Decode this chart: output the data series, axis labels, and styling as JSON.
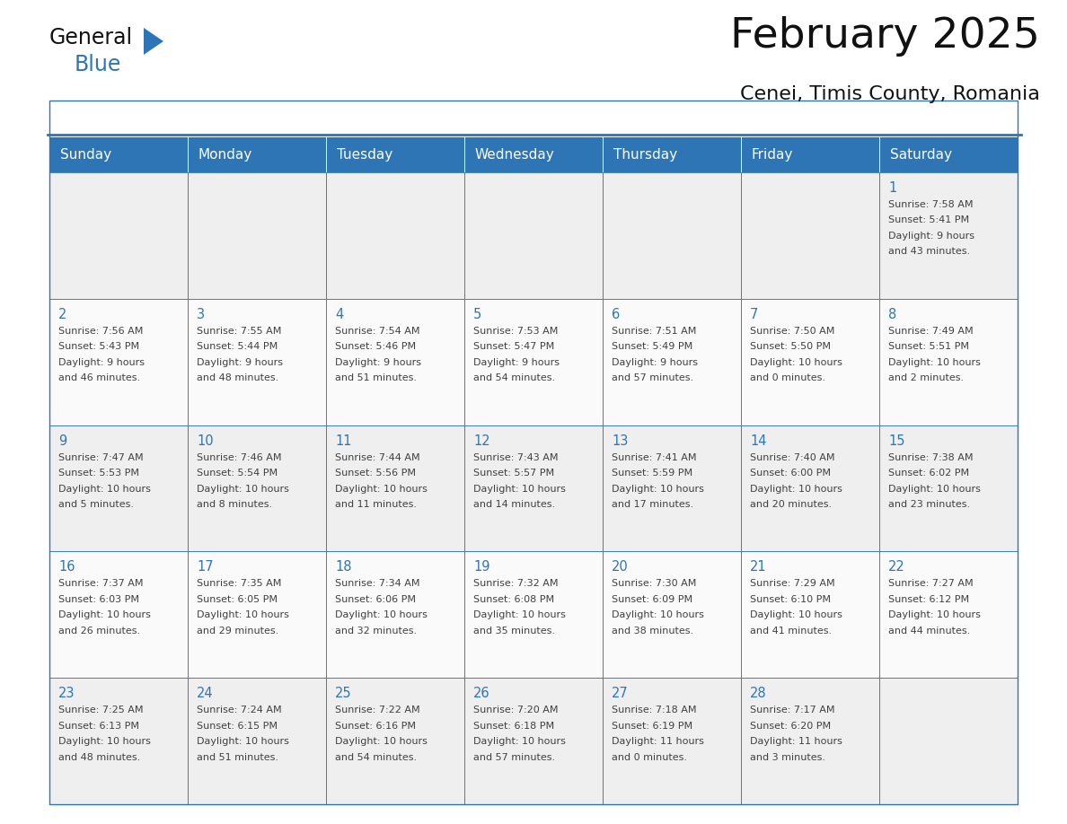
{
  "title": "February 2025",
  "subtitle": "Cenei, Timis County, Romania",
  "header_bg": "#2E75B6",
  "header_text_color": "#FFFFFF",
  "cell_bg": "#EFEFEF",
  "cell_border_color": "#2E75B6",
  "day_number_color": "#2E75B6",
  "cell_text_color": "#404040",
  "title_color": "#1a1a1a",
  "subtitle_color": "#1a1a1a",
  "days_of_week": [
    "Sunday",
    "Monday",
    "Tuesday",
    "Wednesday",
    "Thursday",
    "Friday",
    "Saturday"
  ],
  "weeks": [
    [
      {
        "day": "",
        "info": ""
      },
      {
        "day": "",
        "info": ""
      },
      {
        "day": "",
        "info": ""
      },
      {
        "day": "",
        "info": ""
      },
      {
        "day": "",
        "info": ""
      },
      {
        "day": "",
        "info": ""
      },
      {
        "day": "1",
        "info": "Sunrise: 7:58 AM\nSunset: 5:41 PM\nDaylight: 9 hours\nand 43 minutes."
      }
    ],
    [
      {
        "day": "2",
        "info": "Sunrise: 7:56 AM\nSunset: 5:43 PM\nDaylight: 9 hours\nand 46 minutes."
      },
      {
        "day": "3",
        "info": "Sunrise: 7:55 AM\nSunset: 5:44 PM\nDaylight: 9 hours\nand 48 minutes."
      },
      {
        "day": "4",
        "info": "Sunrise: 7:54 AM\nSunset: 5:46 PM\nDaylight: 9 hours\nand 51 minutes."
      },
      {
        "day": "5",
        "info": "Sunrise: 7:53 AM\nSunset: 5:47 PM\nDaylight: 9 hours\nand 54 minutes."
      },
      {
        "day": "6",
        "info": "Sunrise: 7:51 AM\nSunset: 5:49 PM\nDaylight: 9 hours\nand 57 minutes."
      },
      {
        "day": "7",
        "info": "Sunrise: 7:50 AM\nSunset: 5:50 PM\nDaylight: 10 hours\nand 0 minutes."
      },
      {
        "day": "8",
        "info": "Sunrise: 7:49 AM\nSunset: 5:51 PM\nDaylight: 10 hours\nand 2 minutes."
      }
    ],
    [
      {
        "day": "9",
        "info": "Sunrise: 7:47 AM\nSunset: 5:53 PM\nDaylight: 10 hours\nand 5 minutes."
      },
      {
        "day": "10",
        "info": "Sunrise: 7:46 AM\nSunset: 5:54 PM\nDaylight: 10 hours\nand 8 minutes."
      },
      {
        "day": "11",
        "info": "Sunrise: 7:44 AM\nSunset: 5:56 PM\nDaylight: 10 hours\nand 11 minutes."
      },
      {
        "day": "12",
        "info": "Sunrise: 7:43 AM\nSunset: 5:57 PM\nDaylight: 10 hours\nand 14 minutes."
      },
      {
        "day": "13",
        "info": "Sunrise: 7:41 AM\nSunset: 5:59 PM\nDaylight: 10 hours\nand 17 minutes."
      },
      {
        "day": "14",
        "info": "Sunrise: 7:40 AM\nSunset: 6:00 PM\nDaylight: 10 hours\nand 20 minutes."
      },
      {
        "day": "15",
        "info": "Sunrise: 7:38 AM\nSunset: 6:02 PM\nDaylight: 10 hours\nand 23 minutes."
      }
    ],
    [
      {
        "day": "16",
        "info": "Sunrise: 7:37 AM\nSunset: 6:03 PM\nDaylight: 10 hours\nand 26 minutes."
      },
      {
        "day": "17",
        "info": "Sunrise: 7:35 AM\nSunset: 6:05 PM\nDaylight: 10 hours\nand 29 minutes."
      },
      {
        "day": "18",
        "info": "Sunrise: 7:34 AM\nSunset: 6:06 PM\nDaylight: 10 hours\nand 32 minutes."
      },
      {
        "day": "19",
        "info": "Sunrise: 7:32 AM\nSunset: 6:08 PM\nDaylight: 10 hours\nand 35 minutes."
      },
      {
        "day": "20",
        "info": "Sunrise: 7:30 AM\nSunset: 6:09 PM\nDaylight: 10 hours\nand 38 minutes."
      },
      {
        "day": "21",
        "info": "Sunrise: 7:29 AM\nSunset: 6:10 PM\nDaylight: 10 hours\nand 41 minutes."
      },
      {
        "day": "22",
        "info": "Sunrise: 7:27 AM\nSunset: 6:12 PM\nDaylight: 10 hours\nand 44 minutes."
      }
    ],
    [
      {
        "day": "23",
        "info": "Sunrise: 7:25 AM\nSunset: 6:13 PM\nDaylight: 10 hours\nand 48 minutes."
      },
      {
        "day": "24",
        "info": "Sunrise: 7:24 AM\nSunset: 6:15 PM\nDaylight: 10 hours\nand 51 minutes."
      },
      {
        "day": "25",
        "info": "Sunrise: 7:22 AM\nSunset: 6:16 PM\nDaylight: 10 hours\nand 54 minutes."
      },
      {
        "day": "26",
        "info": "Sunrise: 7:20 AM\nSunset: 6:18 PM\nDaylight: 10 hours\nand 57 minutes."
      },
      {
        "day": "27",
        "info": "Sunrise: 7:18 AM\nSunset: 6:19 PM\nDaylight: 11 hours\nand 0 minutes."
      },
      {
        "day": "28",
        "info": "Sunrise: 7:17 AM\nSunset: 6:20 PM\nDaylight: 11 hours\nand 3 minutes."
      },
      {
        "day": "",
        "info": ""
      }
    ]
  ]
}
